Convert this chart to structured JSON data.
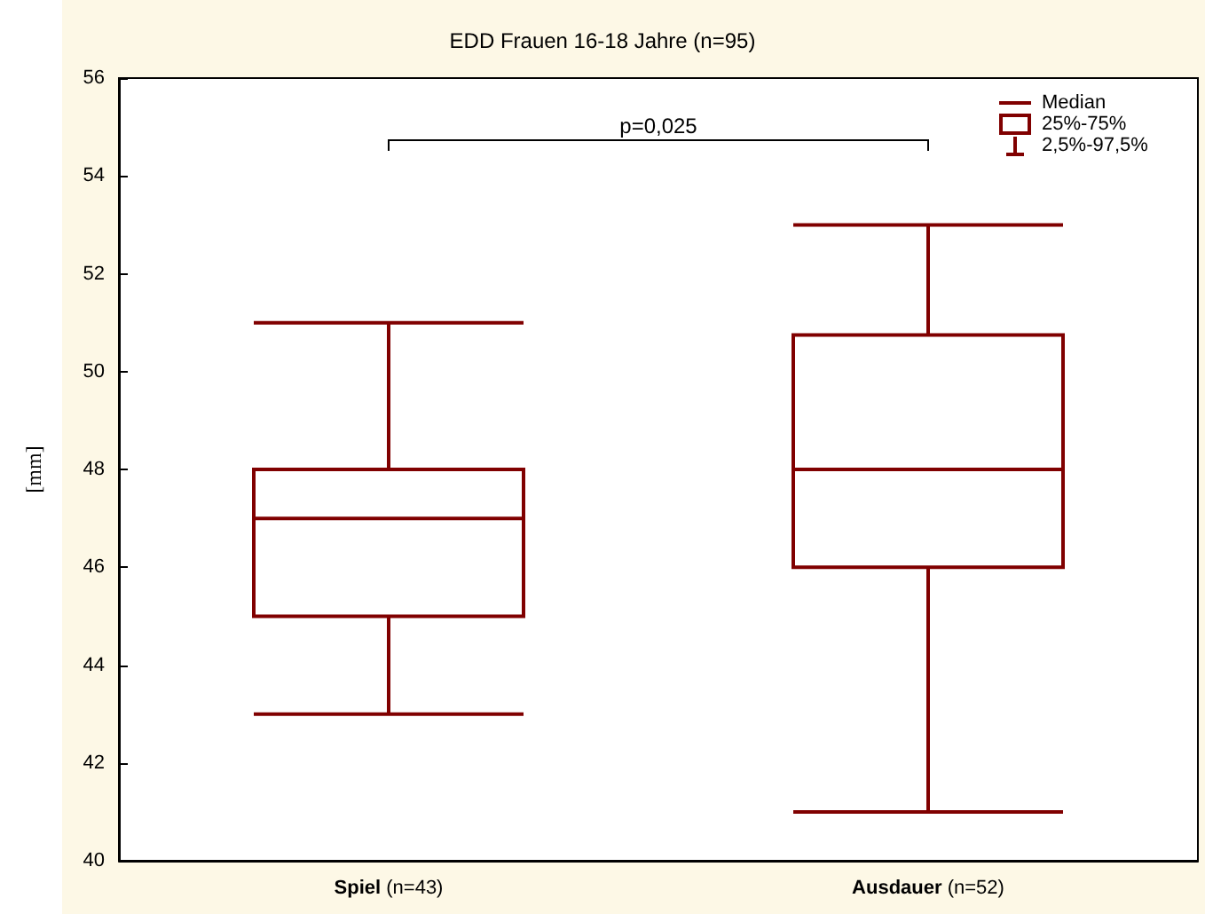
{
  "chart_data": {
    "type": "box",
    "title": "EDD Frauen 16-18 Jahre (n=95)",
    "ylabel": "[mm]",
    "categories": [
      "Spiel (n=43)",
      "Ausdauer (n=52)"
    ],
    "boxes": [
      {
        "low": 43,
        "q1": 45,
        "median": 47,
        "q3": 48,
        "high": 51
      },
      {
        "low": 41,
        "q1": 46,
        "median": 48,
        "q3": 50.75,
        "high": 53
      }
    ],
    "color": "#800000",
    "ylim": [
      40,
      56
    ],
    "yticks": [
      40,
      42,
      44,
      46,
      48,
      50,
      52,
      54,
      56
    ],
    "grid": false,
    "annotations": [
      "p=0,025",
      "Median",
      "25%-75%",
      "2,5%-97,5%"
    ]
  }
}
